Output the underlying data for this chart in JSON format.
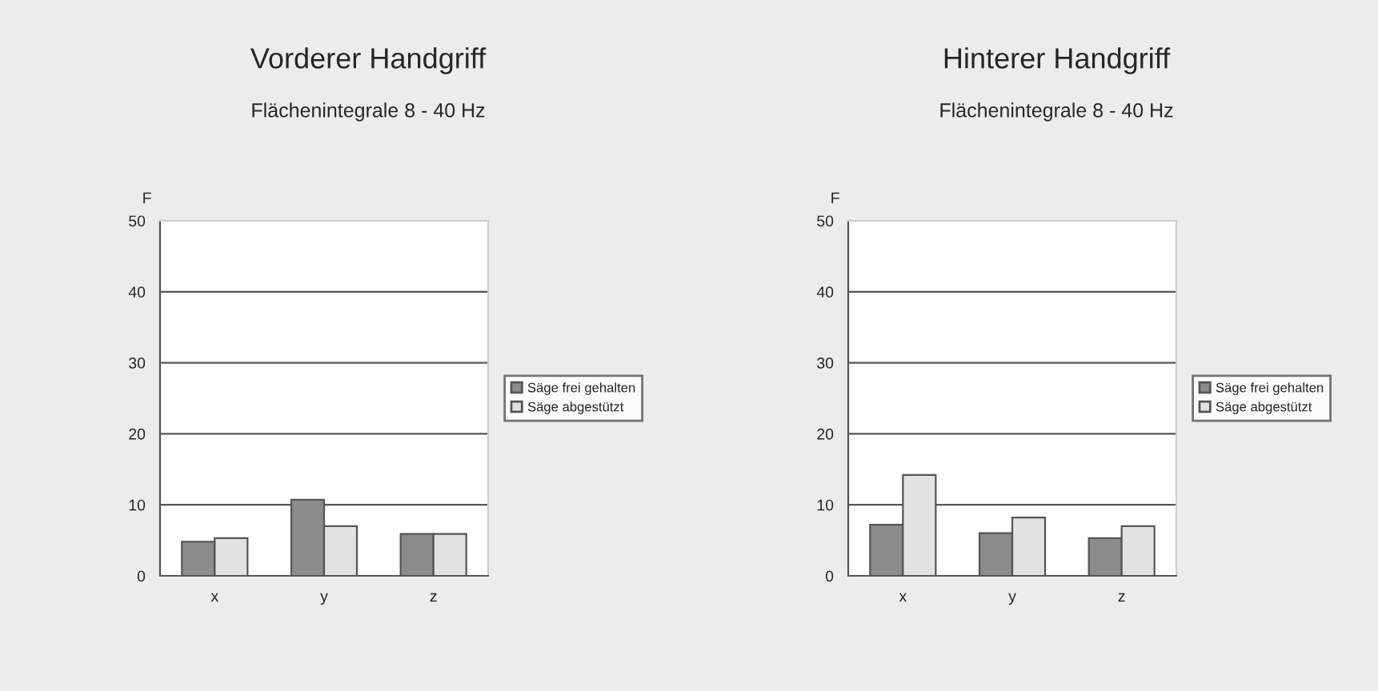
{
  "chart_data": [
    {
      "type": "bar",
      "title": "Vorderer Handgriff",
      "subtitle": "Flächenintegrale 8 - 40 Hz",
      "ylabel": "F",
      "categories": [
        "x",
        "y",
        "z"
      ],
      "series": [
        {
          "name": "Säge frei gehalten",
          "color": "#8c8c8c",
          "values": [
            4.8,
            10.7,
            5.9
          ]
        },
        {
          "name": "Säge abgestützt",
          "color": "#e2e2e2",
          "values": [
            5.3,
            7.0,
            5.9
          ]
        }
      ],
      "ylim": [
        0,
        50
      ],
      "yticks": [
        0,
        10,
        20,
        30,
        40,
        50
      ],
      "grid": "y",
      "legend": "right"
    },
    {
      "type": "bar",
      "title": "Hinterer Handgriff",
      "subtitle": "Flächenintegrale 8 - 40 Hz",
      "ylabel": "F",
      "categories": [
        "x",
        "y",
        "z"
      ],
      "series": [
        {
          "name": "Säge frei gehalten",
          "color": "#8c8c8c",
          "values": [
            7.2,
            6.0,
            5.3
          ]
        },
        {
          "name": "Säge abgestützt",
          "color": "#e2e2e2",
          "values": [
            14.2,
            8.2,
            7.0
          ]
        }
      ],
      "ylim": [
        0,
        50
      ],
      "yticks": [
        0,
        10,
        20,
        30,
        40,
        50
      ],
      "grid": "y",
      "legend": "right"
    }
  ]
}
